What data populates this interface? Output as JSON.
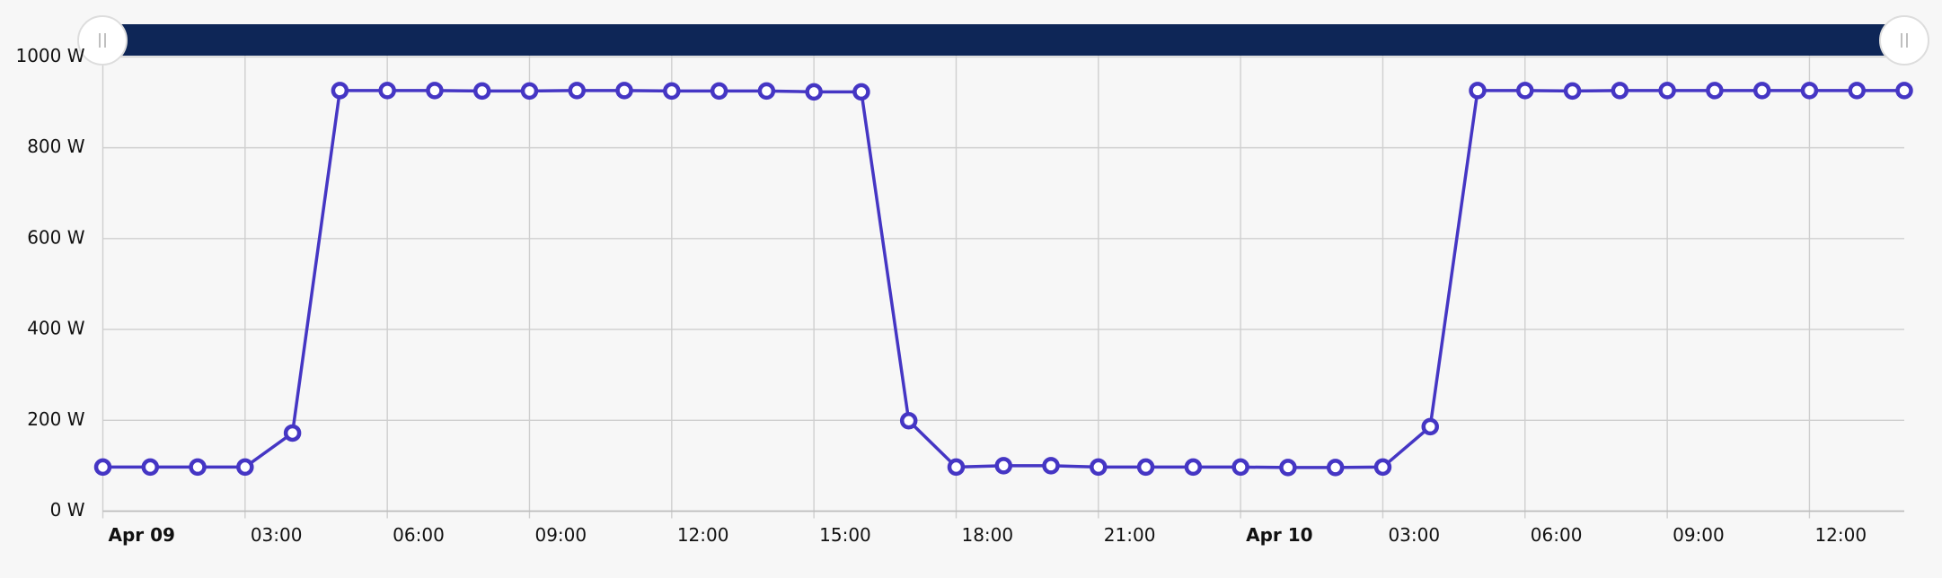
{
  "chart_data": {
    "type": "line",
    "x": [
      "Apr 09 00:00",
      "Apr 09 01:00",
      "Apr 09 02:00",
      "Apr 09 03:00",
      "Apr 09 04:00",
      "Apr 09 05:00",
      "Apr 09 06:00",
      "Apr 09 07:00",
      "Apr 09 08:00",
      "Apr 09 09:00",
      "Apr 09 10:00",
      "Apr 09 11:00",
      "Apr 09 12:00",
      "Apr 09 13:00",
      "Apr 09 14:00",
      "Apr 09 15:00",
      "Apr 09 16:00",
      "Apr 09 17:00",
      "Apr 09 18:00",
      "Apr 09 19:00",
      "Apr 09 20:00",
      "Apr 09 21:00",
      "Apr 09 22:00",
      "Apr 09 23:00",
      "Apr 10 00:00",
      "Apr 10 01:00",
      "Apr 10 02:00",
      "Apr 10 03:00",
      "Apr 10 04:00",
      "Apr 10 05:00",
      "Apr 10 06:00",
      "Apr 10 07:00",
      "Apr 10 08:00",
      "Apr 10 09:00",
      "Apr 10 10:00",
      "Apr 10 11:00",
      "Apr 10 12:00",
      "Apr 10 13:00",
      "Apr 10 14:00"
    ],
    "values": [
      97,
      97,
      97,
      97,
      172,
      926,
      926,
      926,
      925,
      925,
      926,
      926,
      925,
      925,
      925,
      923,
      923,
      199,
      97,
      100,
      100,
      97,
      97,
      97,
      97,
      96,
      96,
      97,
      186,
      926,
      926,
      925,
      926,
      926,
      926,
      926,
      926,
      926,
      926
    ],
    "color": "#4536c4",
    "ylim": [
      0,
      1000
    ],
    "yticks": [
      {
        "value": 0,
        "label": "0 W"
      },
      {
        "value": 200,
        "label": "200 W"
      },
      {
        "value": 400,
        "label": "400 W"
      },
      {
        "value": 600,
        "label": "600 W"
      },
      {
        "value": 800,
        "label": "800 W"
      },
      {
        "value": 1000,
        "label": "1000 W"
      }
    ],
    "xticks": [
      {
        "value": "Apr 09 00:00",
        "label": "Apr 09"
      },
      {
        "value": "Apr 09 03:00",
        "label": "03:00"
      },
      {
        "value": "Apr 09 06:00",
        "label": "06:00"
      },
      {
        "value": "Apr 09 09:00",
        "label": "09:00"
      },
      {
        "value": "Apr 09 12:00",
        "label": "12:00"
      },
      {
        "value": "Apr 09 15:00",
        "label": "15:00"
      },
      {
        "value": "Apr 09 18:00",
        "label": "18:00"
      },
      {
        "value": "Apr 09 21:00",
        "label": "21:00"
      },
      {
        "value": "Apr 10 00:00",
        "label": "Apr 10"
      },
      {
        "value": "Apr 10 03:00",
        "label": "03:00"
      },
      {
        "value": "Apr 10 06:00",
        "label": "06:00"
      },
      {
        "value": "Apr 10 09:00",
        "label": "09:00"
      },
      {
        "value": "Apr 10 12:00",
        "label": "12:00"
      }
    ],
    "grid": true
  }
}
